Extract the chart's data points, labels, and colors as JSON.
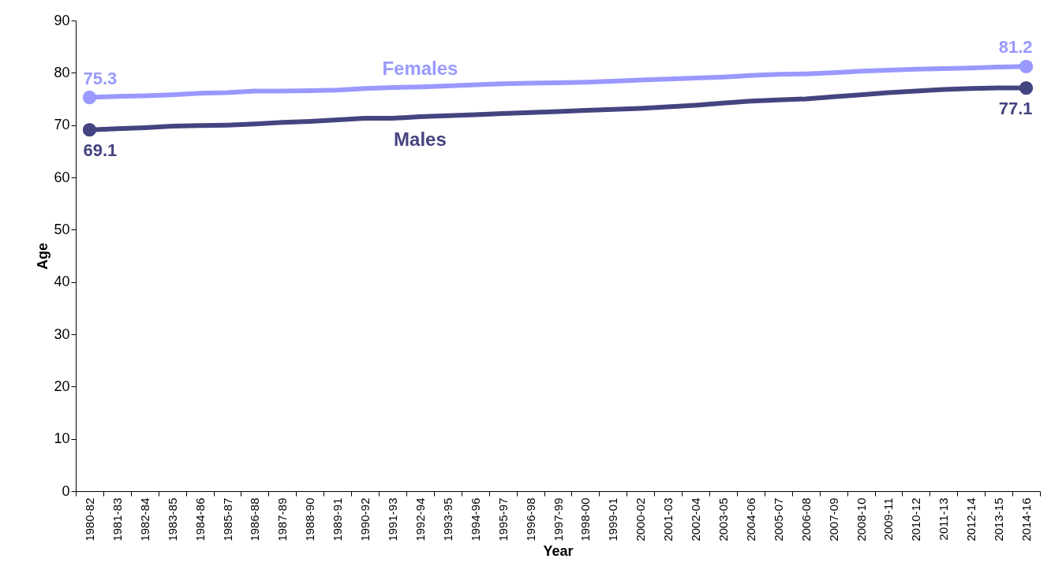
{
  "chart_data": {
    "type": "line",
    "xlabel": "Year",
    "ylabel": "Age",
    "ylim": [
      0,
      90
    ],
    "yticks": [
      0,
      10,
      20,
      30,
      40,
      50,
      60,
      70,
      80,
      90
    ],
    "grid": false,
    "categories": [
      "1980-82",
      "1981-83",
      "1982-84",
      "1983-85",
      "1984-86",
      "1985-87",
      "1986-88",
      "1987-89",
      "1988-90",
      "1989-91",
      "1990-92",
      "1991-93",
      "1992-94",
      "1993-95",
      "1994-96",
      "1995-97",
      "1996-98",
      "1997-99",
      "1998-00",
      "1999-01",
      "2000-02",
      "2001-03",
      "2002-04",
      "2003-05",
      "2004-06",
      "2005-07",
      "2006-08",
      "2007-09",
      "2008-10",
      "2009-11",
      "2010-12",
      "2011-13",
      "2012-14",
      "2013-15",
      "2014-16"
    ],
    "series": [
      {
        "name": "Females",
        "color": "#9999ff",
        "values": [
          75.3,
          75.5,
          75.6,
          75.8,
          76.1,
          76.2,
          76.5,
          76.5,
          76.6,
          76.7,
          77.0,
          77.2,
          77.3,
          77.5,
          77.7,
          77.9,
          78.0,
          78.1,
          78.2,
          78.4,
          78.6,
          78.8,
          79.0,
          79.2,
          79.5,
          79.7,
          79.8,
          80.0,
          80.3,
          80.5,
          80.7,
          80.8,
          80.9,
          81.1,
          81.2
        ],
        "value_labels": [
          "75.3",
          null,
          null,
          null,
          null,
          null,
          null,
          null,
          null,
          null,
          null,
          null,
          null,
          null,
          null,
          null,
          null,
          null,
          null,
          null,
          null,
          null,
          null,
          null,
          null,
          null,
          null,
          null,
          null,
          null,
          null,
          null,
          null,
          null,
          "81.2"
        ]
      },
      {
        "name": "Males",
        "color": "#444480",
        "values": [
          69.1,
          69.3,
          69.5,
          69.8,
          69.9,
          70.0,
          70.2,
          70.5,
          70.7,
          71.0,
          71.3,
          71.3,
          71.6,
          71.8,
          72.0,
          72.2,
          72.4,
          72.6,
          72.8,
          73.0,
          73.2,
          73.5,
          73.8,
          74.2,
          74.6,
          74.8,
          75.0,
          75.4,
          75.8,
          76.2,
          76.5,
          76.8,
          77.0,
          77.1,
          77.1
        ],
        "value_labels": [
          "69.1",
          null,
          null,
          null,
          null,
          null,
          null,
          null,
          null,
          null,
          null,
          null,
          null,
          null,
          null,
          null,
          null,
          null,
          null,
          null,
          null,
          null,
          null,
          null,
          null,
          null,
          null,
          null,
          null,
          null,
          null,
          null,
          null,
          null,
          "77.1"
        ]
      }
    ]
  }
}
